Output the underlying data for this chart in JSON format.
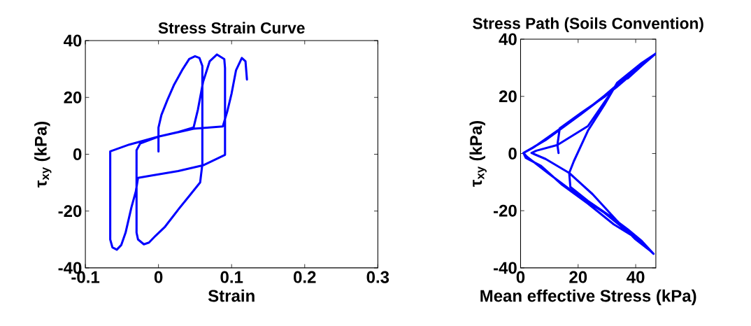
{
  "chart_data": [
    {
      "type": "line",
      "title": "Stress Strain Curve",
      "xlabel": "Strain",
      "ylabel": "τ$_{xy}$ (kPa)",
      "xlim": [
        -0.1,
        0.3
      ],
      "ylim": [
        -40,
        40
      ],
      "xticks": [
        -0.1,
        0,
        0.1,
        0.2,
        0.3
      ],
      "yticks": [
        -40,
        -20,
        0,
        20,
        40
      ],
      "grid": false,
      "marker": "none",
      "line_style": "solid",
      "series": [
        {
          "color": "#0000ff",
          "x": [
            0.0,
            0.0,
            0.004,
            0.012,
            0.021,
            0.033,
            0.042,
            0.05,
            0.056,
            0.06,
            0.06,
            0.057,
            0.042,
            0.027,
            0.009,
            -0.004,
            -0.013,
            -0.02,
            -0.028,
            -0.03,
            -0.03,
            -0.025,
            0.0,
            0.027,
            0.048,
            0.054,
            0.061,
            0.07,
            0.08,
            0.09,
            0.091,
            0.091,
            0.061,
            0.027,
            -0.01,
            -0.028,
            -0.031,
            -0.037,
            -0.045,
            -0.051,
            -0.057,
            -0.063,
            -0.066,
            -0.066,
            -0.04,
            0.0,
            0.048,
            0.088,
            0.094,
            0.1,
            0.106,
            0.114,
            0.119,
            0.121
          ],
          "values": [
            1.0,
            9.4,
            13.8,
            19.0,
            24.3,
            29.9,
            33.5,
            34.5,
            33.9,
            31.1,
            -3.5,
            -9.9,
            -14.7,
            -19.5,
            -25.5,
            -28.7,
            -31.1,
            -31.7,
            -30.0,
            -27.6,
            1.4,
            3.8,
            6.2,
            7.8,
            9.4,
            15.8,
            25.5,
            32.7,
            35.1,
            33.5,
            30.3,
            -0.2,
            -3.9,
            -5.9,
            -7.5,
            -8.3,
            -13.1,
            -18.7,
            -27.6,
            -32.0,
            -33.6,
            -32.8,
            -30.0,
            1.0,
            3.4,
            6.2,
            9.0,
            9.8,
            15.0,
            21.4,
            29.5,
            33.9,
            32.7,
            26.3
          ]
        }
      ]
    },
    {
      "type": "line",
      "title": "Stress Path (Soils Convention)",
      "xlabel": "Mean effective Stress (kPa)",
      "ylabel": "τ$_{xy}$ (kPa)",
      "xlim": [
        0,
        47
      ],
      "ylim": [
        -40,
        40
      ],
      "xticks": [
        0,
        20,
        40
      ],
      "yticks": [
        -40,
        -20,
        0,
        20,
        40
      ],
      "grid": false,
      "marker": "none",
      "line_style": "solid",
      "series": [
        {
          "color": "#0000ff",
          "x": [
            13.2,
            12.8,
            13.6,
            20.9,
            29.1,
            37.2,
            47.0,
            42.1,
            33.6,
            29.1,
            23.4,
            18.5,
            16.9,
            17.3,
            23.4,
            30.7,
            37.2,
            42.1,
            46.2,
            40.5,
            32.4,
            23.4,
            14.4,
            7.1,
            1.8,
            1.0,
            4.6,
            12.8,
            20.9,
            29.1,
            37.2,
            46.6,
            40.5,
            33.2,
            23.4,
            12.8,
            5.5,
            3.8,
            8.7,
            16.9,
            25.0,
            33.2,
            39.7,
            45.4,
            37.2,
            29.1,
            19.3,
            9.5,
            2.2,
            1.0,
            8.7,
            20.9,
            33.2,
            47.0,
            44.6,
            37.2
          ],
          "values": [
            0.2,
            3.0,
            8.8,
            14.1,
            19.8,
            26.8,
            35.0,
            31.7,
            24.8,
            17.0,
            8.0,
            -2.7,
            -6.8,
            -11.7,
            -16.6,
            -21.6,
            -26.5,
            -30.6,
            -35.1,
            -29.8,
            -24.8,
            -17.5,
            -10.9,
            -4.3,
            -1.5,
            0.2,
            2.2,
            8.0,
            13.7,
            20.2,
            27.2,
            34.6,
            30.1,
            23.9,
            9.6,
            3.0,
            1.0,
            0.2,
            -1.9,
            -6.8,
            -14.2,
            -23.2,
            -29.8,
            -34.3,
            -27.3,
            -20.7,
            -14.2,
            -6.8,
            -1.1,
            0.2,
            4.7,
            13.7,
            23.1,
            35.0,
            33.0,
            26.3
          ]
        }
      ]
    }
  ]
}
